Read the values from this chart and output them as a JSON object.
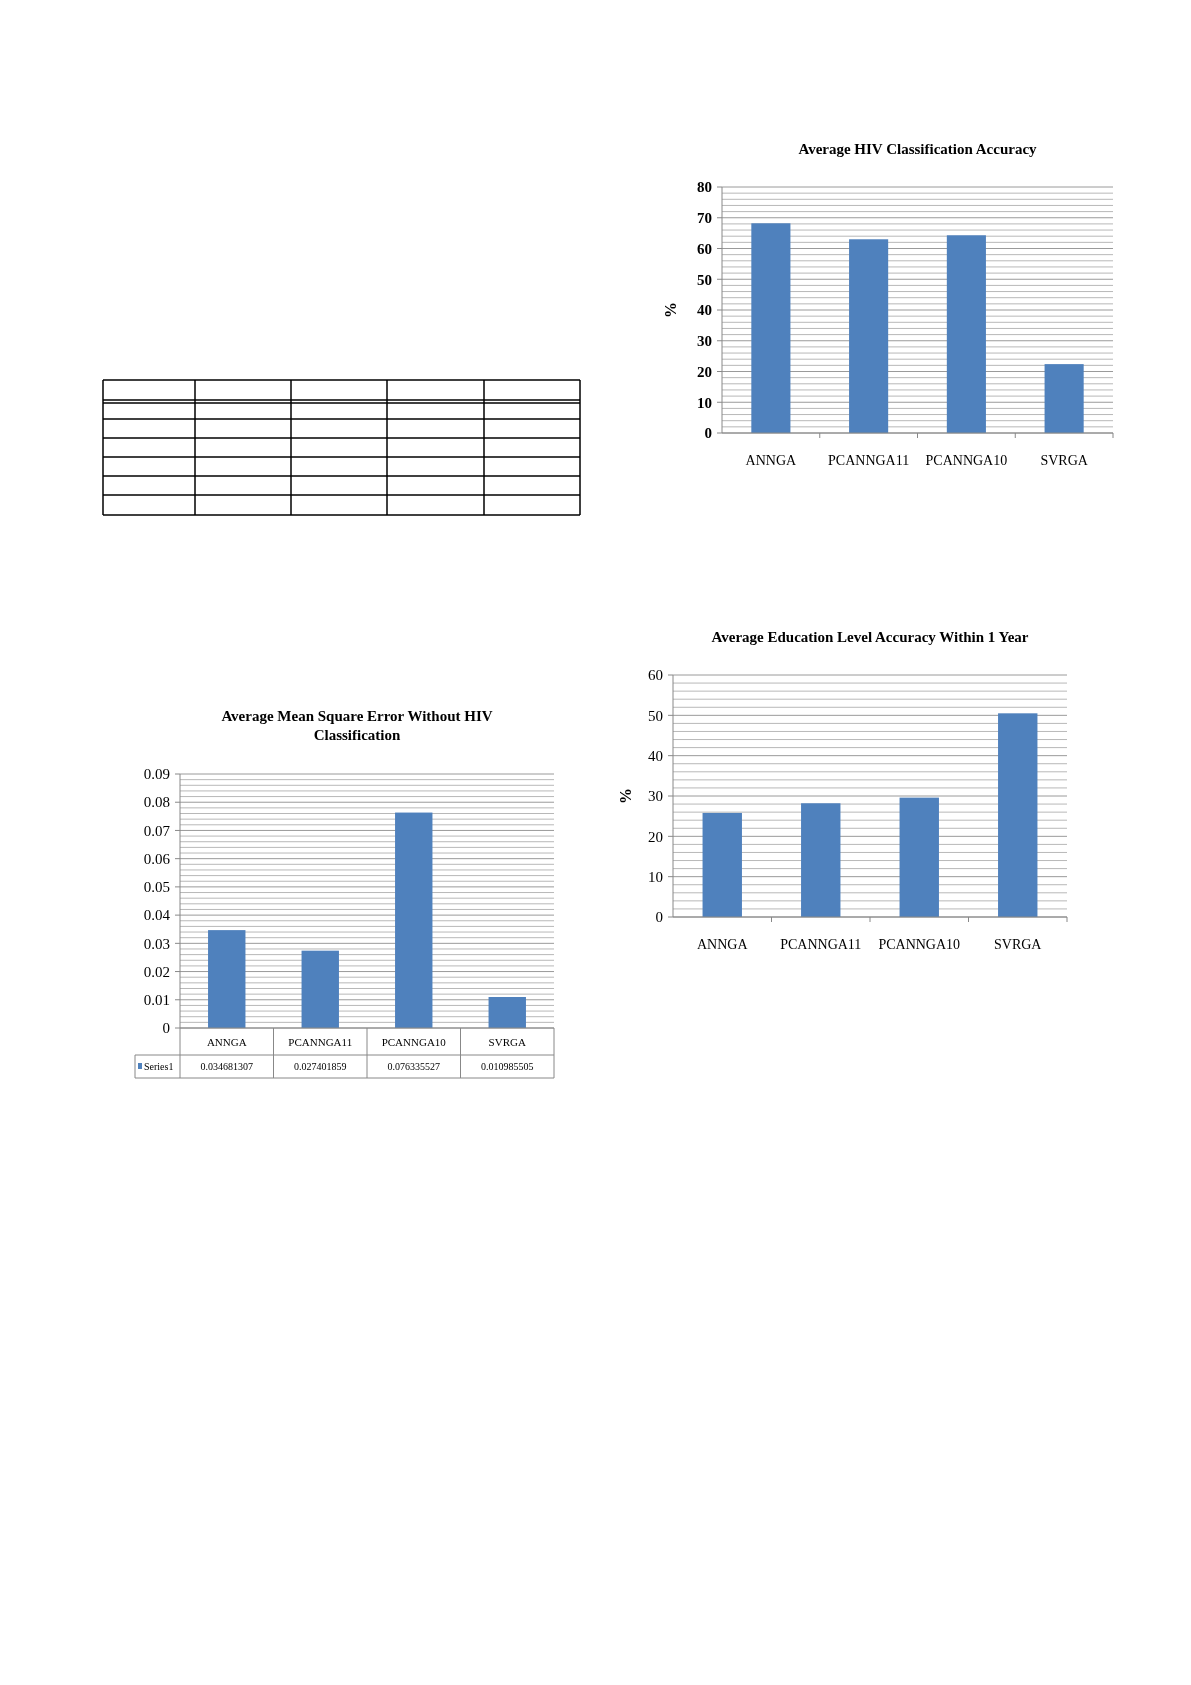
{
  "chart_data": [
    {
      "type": "bar",
      "title": "Average HIV Classification Accuracy",
      "ylabel": "%",
      "categories": [
        "ANNGA",
        "PCANNGA11",
        "PCANNGA10",
        "SVRGA"
      ],
      "values": [
        68.2,
        63,
        64.3,
        22.4
      ],
      "color": "#4f81bd",
      "ylim": [
        0,
        80
      ],
      "grid": "y",
      "yticks": [
        0,
        {
          "value": 2,
          "label": null
        },
        {
          "value": 4,
          "label": null
        },
        {
          "value": 6,
          "label": null
        },
        {
          "value": 8,
          "label": null
        },
        10,
        {
          "value": 12,
          "label": null
        },
        {
          "value": 14,
          "label": null
        },
        {
          "value": 16,
          "label": null
        },
        {
          "value": 18,
          "label": null
        },
        20,
        {
          "value": 22,
          "label": null
        },
        {
          "value": 24,
          "label": null
        },
        {
          "value": 26,
          "label": null
        },
        {
          "value": 28,
          "label": null
        },
        30,
        {
          "value": 32,
          "label": null
        },
        {
          "value": 34,
          "label": null
        },
        {
          "value": 36,
          "label": null
        },
        {
          "value": 38,
          "label": null
        },
        40,
        {
          "value": 42,
          "label": null
        },
        {
          "value": 44,
          "label": null
        },
        {
          "value": 46,
          "label": null
        },
        {
          "value": 48,
          "label": null
        },
        50,
        {
          "value": 52,
          "label": null
        },
        {
          "value": 54,
          "label": null
        },
        {
          "value": 56,
          "label": null
        },
        {
          "value": 58,
          "label": null
        },
        60,
        {
          "value": 62,
          "label": null
        },
        {
          "value": 64,
          "label": null
        },
        {
          "value": 66,
          "label": null
        },
        {
          "value": 68,
          "label": null
        },
        70,
        {
          "value": 72,
          "label": null
        },
        {
          "value": 74,
          "label": null
        },
        {
          "value": 76,
          "label": null
        },
        {
          "value": 78,
          "label": null
        },
        80
      ]
    },
    {
      "type": "bar",
      "title": "Average Education Level Accuracy Within 1 Year",
      "ylabel": "%",
      "categories": [
        "ANNGA",
        "PCANNGA11",
        "PCANNGA10",
        "SVRGA"
      ],
      "values": [
        25.8,
        28.2,
        29.6,
        50.5
      ],
      "color": "#4f81bd",
      "ylim": [
        0,
        60
      ],
      "grid": "y",
      "yticks": [
        0,
        {
          "value": 2,
          "label": null
        },
        {
          "value": 4,
          "label": null
        },
        {
          "value": 6,
          "label": null
        },
        {
          "value": 8,
          "label": null
        },
        10,
        {
          "value": 12,
          "label": null
        },
        {
          "value": 14,
          "label": null
        },
        {
          "value": 16,
          "label": null
        },
        {
          "value": 18,
          "label": null
        },
        20,
        {
          "value": 22,
          "label": null
        },
        {
          "value": 24,
          "label": null
        },
        {
          "value": 26,
          "label": null
        },
        {
          "value": 28,
          "label": null
        },
        30,
        {
          "value": 32,
          "label": null
        },
        {
          "value": 34,
          "label": null
        },
        {
          "value": 36,
          "label": null
        },
        {
          "value": 38,
          "label": null
        },
        40,
        {
          "value": 42,
          "label": null
        },
        {
          "value": 44,
          "label": null
        },
        {
          "value": 46,
          "label": null
        },
        {
          "value": 48,
          "label": null
        },
        50,
        {
          "value": 52,
          "label": null
        },
        {
          "value": 54,
          "label": null
        },
        {
          "value": 56,
          "label": null
        },
        {
          "value": 58,
          "label": null
        },
        60
      ]
    },
    {
      "type": "bar",
      "title": "Average Mean Square Error Without HIV Classification",
      "categories": [
        "ANNGA",
        "PCANNGA11",
        "PCANNGA10",
        "SVRGA"
      ],
      "series": [
        {
          "name": "Series1",
          "color": "#4f81bd",
          "values": [
            0.034681307,
            0.027401859,
            0.076335527,
            0.010985505
          ]
        }
      ],
      "data_labels": true,
      "ylim": [
        0,
        0.09
      ],
      "grid": "y",
      "yticks": [
        0,
        {
          "value": 0.002,
          "label": null
        },
        {
          "value": 0.004,
          "label": null
        },
        {
          "value": 0.006,
          "label": null
        },
        {
          "value": 0.008,
          "label": null
        },
        0.01,
        {
          "value": 0.012,
          "label": null
        },
        {
          "value": 0.014,
          "label": null
        },
        {
          "value": 0.016,
          "label": null
        },
        {
          "value": 0.018,
          "label": null
        },
        0.02,
        {
          "value": 0.022,
          "label": null
        },
        {
          "value": 0.024,
          "label": null
        },
        {
          "value": 0.026,
          "label": null
        },
        {
          "value": 0.028,
          "label": null
        },
        0.03,
        {
          "value": 0.032,
          "label": null
        },
        {
          "value": 0.034,
          "label": null
        },
        {
          "value": 0.036,
          "label": null
        },
        {
          "value": 0.038,
          "label": null
        },
        0.04,
        {
          "value": 0.042,
          "label": null
        },
        {
          "value": 0.044,
          "label": null
        },
        {
          "value": 0.046,
          "label": null
        },
        {
          "value": 0.048,
          "label": null
        },
        0.05,
        {
          "value": 0.052,
          "label": null
        },
        {
          "value": 0.054,
          "label": null
        },
        {
          "value": 0.056,
          "label": null
        },
        {
          "value": 0.058,
          "label": null
        },
        0.06,
        {
          "value": 0.062,
          "label": null
        },
        {
          "value": 0.064,
          "label": null
        },
        {
          "value": 0.066,
          "label": null
        },
        {
          "value": 0.068,
          "label": null
        },
        0.07,
        {
          "value": 0.072,
          "label": null
        },
        {
          "value": 0.074,
          "label": null
        },
        {
          "value": 0.076,
          "label": null
        },
        {
          "value": 0.078,
          "label": null
        },
        0.08,
        {
          "value": 0.082,
          "label": null
        },
        {
          "value": 0.084,
          "label": null
        },
        {
          "value": 0.086,
          "label": null
        },
        {
          "value": 0.088,
          "label": null
        },
        0.09
      ]
    }
  ]
}
